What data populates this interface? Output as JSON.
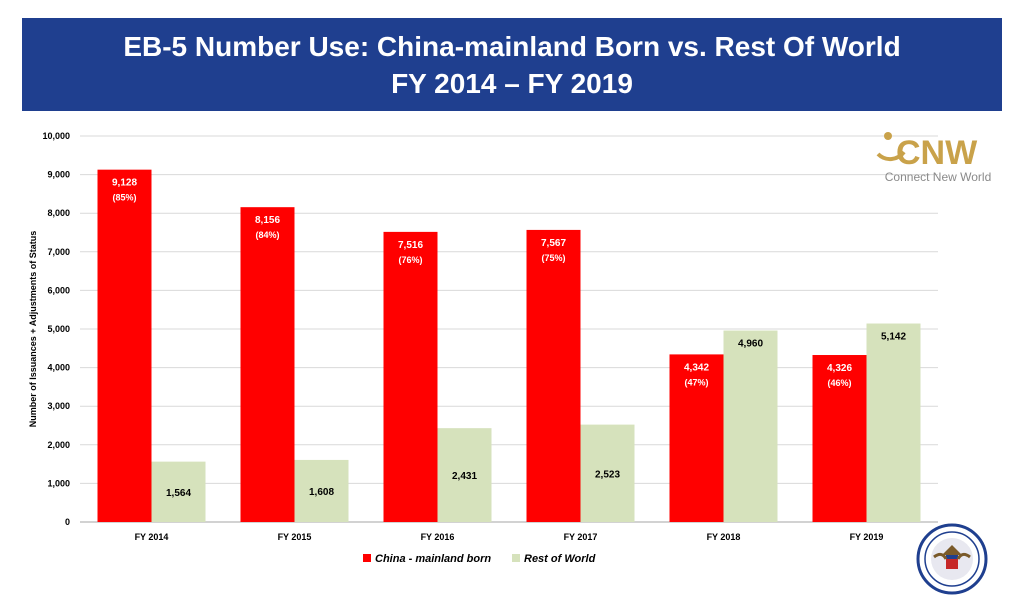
{
  "header": {
    "title_line1": "EB-5 Number Use: China-mainland Born vs. Rest Of World",
    "title_line2": "FY 2014 – FY 2019"
  },
  "logo": {
    "mark": "CNW",
    "tagline": "Connect New World",
    "color": "#c9a24a"
  },
  "seal": {
    "icon": "state-department-seal-icon"
  },
  "chart_data": {
    "type": "bar",
    "title": "EB-5 Number Use: China-mainland Born vs. Rest Of World FY 2014 – FY 2019",
    "ylabel": "Number of Issuances +  Adjustments of Status",
    "xlabel": "",
    "ylim": [
      0,
      10000
    ],
    "yticks": [
      "0",
      "1,000",
      "2,000",
      "3,000",
      "4,000",
      "5,000",
      "6,000",
      "7,000",
      "8,000",
      "9,000",
      "10,000"
    ],
    "ytick_values": [
      0,
      1000,
      2000,
      3000,
      4000,
      5000,
      6000,
      7000,
      8000,
      9000,
      10000
    ],
    "grid": true,
    "legend_position": "bottom-center",
    "categories": [
      "FY 2014",
      "FY 2015",
      "FY 2016",
      "FY 2017",
      "FY 2018",
      "FY 2019"
    ],
    "series": [
      {
        "name": "China - mainland born",
        "color": "#ff0000",
        "values": [
          9128,
          8156,
          7516,
          7567,
          4342,
          4326
        ],
        "labels": [
          "9,128",
          "8,156",
          "7,516",
          "7,567",
          "4,342",
          "4,326"
        ],
        "percent_labels": [
          "(85%)",
          "(84%)",
          "(76%)",
          "(75%)",
          "(47%)",
          "(46%)"
        ]
      },
      {
        "name": "Rest of World",
        "color": "#d6e2bc",
        "values": [
          1564,
          1608,
          2431,
          2523,
          4960,
          5142
        ],
        "labels": [
          "1,564",
          "1,608",
          "2,431",
          "2,523",
          "4,960",
          "5,142"
        ]
      }
    ]
  }
}
